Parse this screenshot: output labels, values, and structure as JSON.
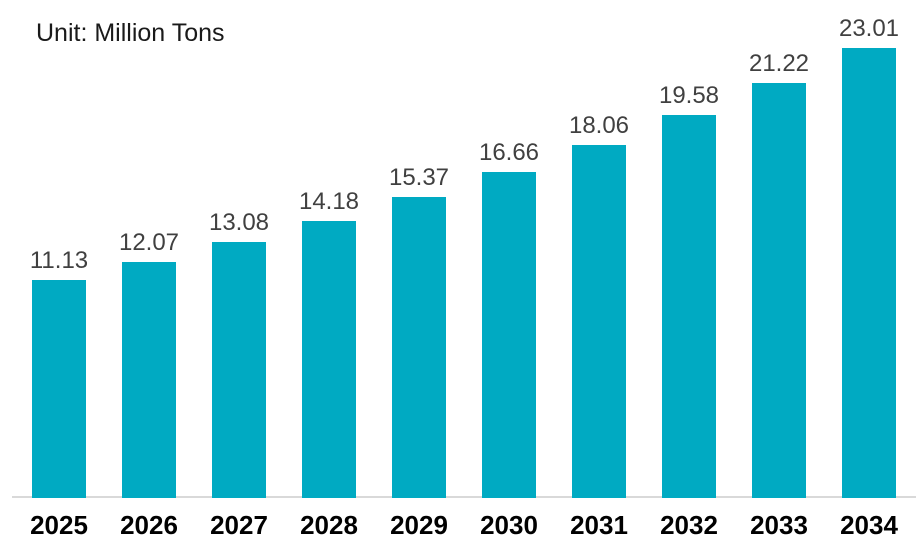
{
  "chart_data": {
    "type": "bar",
    "title": "Unit: Million Tons",
    "categories": [
      "2025",
      "2026",
      "2027",
      "2028",
      "2029",
      "2030",
      "2031",
      "2032",
      "2033",
      "2034"
    ],
    "values": [
      11.13,
      12.07,
      13.08,
      14.18,
      15.37,
      16.66,
      18.06,
      19.58,
      21.22,
      23.01
    ],
    "value_labels": [
      "11.13",
      "12.07",
      "13.08",
      "14.18",
      "15.37",
      "16.66",
      "18.06",
      "19.58",
      "21.22",
      "23.01"
    ],
    "xlabel": "",
    "ylabel": "Million Tons",
    "ylim": [
      0,
      25.5
    ],
    "grid": false,
    "legend": "none",
    "value_labels_visible": true,
    "colors": {
      "bar": "#00aac2",
      "value_label": "#404040",
      "category_label": "#000000",
      "axis_line": "#d9d9d9",
      "title": "#1a1a1a",
      "background": "#ffffff"
    }
  }
}
